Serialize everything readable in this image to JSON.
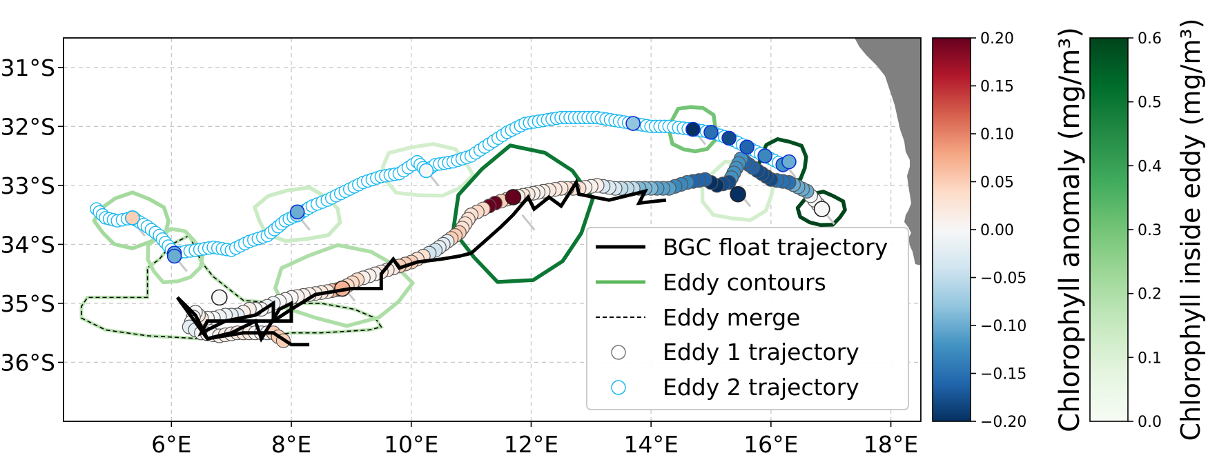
{
  "chart_data": [
    {
      "type": "scatter",
      "subtype": "map",
      "title": "",
      "xlabel": "",
      "ylabel": "",
      "xlim": [
        4.2,
        18.5
      ],
      "ylim": [
        -37.0,
        -30.5
      ],
      "x_ticks": [
        6,
        8,
        10,
        12,
        14,
        16,
        18
      ],
      "x_tick_labels": [
        "6°E",
        "8°E",
        "10°E",
        "12°E",
        "14°E",
        "16°E",
        "18°E"
      ],
      "y_ticks": [
        -31,
        -32,
        -33,
        -34,
        -35,
        -36
      ],
      "y_tick_labels": [
        "31°S",
        "32°S",
        "33°S",
        "34°S",
        "35°S",
        "36°S"
      ],
      "grid": true,
      "land_color": "#808080",
      "legend_position": "lower-right",
      "legend": [
        {
          "label": "BGC float trajectory",
          "style": "line",
          "color": "#000000"
        },
        {
          "label": "Eddy contours",
          "style": "line",
          "color": "#5cb85c"
        },
        {
          "label": "Eddy merge",
          "style": "dashed",
          "color": "#000000"
        },
        {
          "label": "Eddy 1 trajectory",
          "style": "circle",
          "color": "#777777"
        },
        {
          "label": "Eddy 2 trajectory",
          "style": "circle",
          "color": "#18b7f0"
        }
      ],
      "series": [
        {
          "name": "BGC float trajectory",
          "color": "#000000",
          "points": [
            [
              14.25,
              -33.25
            ],
            [
              13.8,
              -33.3
            ],
            [
              13.9,
              -33.1
            ],
            [
              13.3,
              -33.25
            ],
            [
              12.8,
              -33.15
            ],
            [
              12.75,
              -32.95
            ],
            [
              12.5,
              -33.35
            ],
            [
              12.3,
              -33.2
            ],
            [
              12.05,
              -33.4
            ],
            [
              11.95,
              -33.2
            ],
            [
              11.7,
              -33.5
            ],
            [
              11.5,
              -33.7
            ],
            [
              11.0,
              -34.15
            ],
            [
              10.8,
              -34.2
            ],
            [
              10.5,
              -34.25
            ],
            [
              10.1,
              -34.3
            ],
            [
              9.8,
              -34.4
            ],
            [
              9.7,
              -34.25
            ],
            [
              9.5,
              -34.5
            ],
            [
              9.5,
              -34.75
            ],
            [
              9.0,
              -34.75
            ],
            [
              8.4,
              -34.85
            ],
            [
              8.0,
              -35.1
            ],
            [
              7.7,
              -35.3
            ],
            [
              7.7,
              -35.0
            ],
            [
              7.4,
              -35.2
            ],
            [
              6.9,
              -35.3
            ],
            [
              6.5,
              -35.5
            ],
            [
              6.6,
              -35.3
            ],
            [
              7.2,
              -35.3
            ],
            [
              8.0,
              -35.3
            ],
            [
              8.0,
              -35.0
            ],
            [
              7.8,
              -35.1
            ],
            [
              7.5,
              -35.6
            ],
            [
              7.4,
              -35.3
            ],
            [
              7.0,
              -35.5
            ],
            [
              6.6,
              -35.6
            ],
            [
              6.4,
              -35.2
            ],
            [
              6.1,
              -34.9
            ],
            [
              6.6,
              -35.6
            ],
            [
              7.2,
              -35.5
            ],
            [
              7.7,
              -35.5
            ],
            [
              8.0,
              -35.7
            ],
            [
              8.3,
              -35.7
            ]
          ]
        },
        {
          "name": "Eddy 1 trajectory",
          "edge_color": "#555555",
          "points": [
            [
              16.85,
              -33.4
            ],
            [
              16.6,
              -33.1
            ],
            [
              16.3,
              -32.95
            ],
            [
              16.0,
              -32.9
            ],
            [
              15.7,
              -32.7
            ],
            [
              15.5,
              -32.55
            ],
            [
              15.3,
              -32.95
            ],
            [
              15.1,
              -33.0
            ],
            [
              14.9,
              -32.9
            ],
            [
              14.6,
              -32.95
            ],
            [
              14.3,
              -33.05
            ],
            [
              14.0,
              -33.05
            ],
            [
              13.7,
              -33.05
            ],
            [
              13.4,
              -33.05
            ],
            [
              13.1,
              -33.0
            ],
            [
              12.8,
              -33.05
            ],
            [
              12.5,
              -33.05
            ],
            [
              12.2,
              -33.1
            ],
            [
              11.95,
              -33.15
            ],
            [
              11.7,
              -33.2
            ],
            [
              11.4,
              -33.3
            ],
            [
              11.2,
              -33.4
            ],
            [
              11.0,
              -33.5
            ],
            [
              10.8,
              -33.8
            ],
            [
              10.6,
              -33.95
            ],
            [
              10.4,
              -34.1
            ],
            [
              10.2,
              -34.2
            ],
            [
              10.0,
              -34.3
            ],
            [
              9.7,
              -34.4
            ],
            [
              9.4,
              -34.5
            ],
            [
              9.1,
              -34.6
            ],
            [
              8.85,
              -34.75
            ],
            [
              8.6,
              -34.8
            ],
            [
              8.3,
              -34.85
            ],
            [
              8.0,
              -34.9
            ],
            [
              7.7,
              -35.0
            ],
            [
              7.5,
              -35.1
            ],
            [
              7.3,
              -35.1
            ],
            [
              7.1,
              -35.2
            ],
            [
              6.9,
              -35.2
            ],
            [
              6.7,
              -35.25
            ],
            [
              6.5,
              -35.25
            ],
            [
              6.4,
              -35.15
            ],
            [
              6.3,
              -35.4
            ],
            [
              6.5,
              -35.5
            ],
            [
              6.8,
              -35.55
            ],
            [
              7.1,
              -35.5
            ],
            [
              7.4,
              -35.5
            ],
            [
              7.7,
              -35.5
            ],
            [
              7.95,
              -35.7
            ],
            [
              6.8,
              -34.9
            ]
          ],
          "chl_anomaly": [
            0.0,
            -0.1,
            -0.15,
            -0.18,
            -0.16,
            -0.12,
            -0.18,
            -0.2,
            -0.16,
            -0.13,
            -0.11,
            -0.09,
            -0.05,
            -0.03,
            0.01,
            0.03,
            0.02,
            0.01,
            0.02,
            0.05,
            0.2,
            0.04,
            0.03,
            0.05,
            -0.02,
            -0.04,
            0.03,
            0.05,
            0.02,
            0.01,
            0.04,
            0.07,
            0.02,
            0.01,
            0.0,
            -0.01,
            0.0,
            0.01,
            -0.02,
            -0.01,
            0.0,
            0.02,
            0.0,
            -0.02,
            0.0,
            0.01,
            0.02,
            0.0,
            0.05,
            0.0,
            0.0
          ]
        },
        {
          "name": "Eddy 2 trajectory",
          "edge_color": "#18b7f0",
          "points": [
            [
              4.75,
              -33.4
            ],
            [
              4.9,
              -33.55
            ],
            [
              5.1,
              -33.6
            ],
            [
              5.35,
              -33.55
            ],
            [
              5.6,
              -33.7
            ],
            [
              5.8,
              -33.85
            ],
            [
              6.05,
              -34.15
            ],
            [
              6.4,
              -34.1
            ],
            [
              6.7,
              -34.05
            ],
            [
              7.0,
              -34.1
            ],
            [
              7.3,
              -33.95
            ],
            [
              7.6,
              -33.85
            ],
            [
              7.9,
              -33.6
            ],
            [
              8.1,
              -33.5
            ],
            [
              8.35,
              -33.35
            ],
            [
              8.6,
              -33.25
            ],
            [
              8.9,
              -33.1
            ],
            [
              9.2,
              -32.95
            ],
            [
              9.5,
              -32.85
            ],
            [
              9.8,
              -32.8
            ],
            [
              10.1,
              -32.6
            ],
            [
              10.25,
              -32.75
            ],
            [
              10.4,
              -32.65
            ],
            [
              10.7,
              -32.6
            ],
            [
              11.0,
              -32.5
            ],
            [
              11.3,
              -32.3
            ],
            [
              11.6,
              -32.1
            ],
            [
              11.9,
              -31.95
            ],
            [
              12.2,
              -31.9
            ],
            [
              12.5,
              -31.85
            ],
            [
              12.8,
              -31.85
            ],
            [
              13.1,
              -31.85
            ],
            [
              13.4,
              -31.9
            ],
            [
              13.7,
              -31.95
            ],
            [
              14.0,
              -32.0
            ],
            [
              14.3,
              -32.0
            ],
            [
              14.7,
              -32.05
            ],
            [
              15.0,
              -32.1
            ],
            [
              15.3,
              -32.2
            ],
            [
              15.6,
              -32.35
            ],
            [
              15.9,
              -32.5
            ],
            [
              16.2,
              -32.65
            ],
            [
              16.3,
              -32.6
            ],
            [
              10.25,
              -32.75
            ],
            [
              8.1,
              -33.45
            ],
            [
              6.05,
              -34.2
            ],
            [
              5.35,
              -33.55
            ],
            [
              10.0,
              -32.75
            ],
            [
              11.2,
              -32.6
            ]
          ],
          "chl_anomaly": [
            null,
            null,
            null,
            0.05,
            null,
            null,
            -0.1,
            null,
            null,
            null,
            null,
            null,
            null,
            -0.05,
            null,
            null,
            null,
            null,
            null,
            null,
            null,
            null,
            null,
            null,
            null,
            null,
            null,
            null,
            null,
            null,
            null,
            null,
            null,
            -0.08,
            null,
            null,
            -0.2,
            -0.15,
            -0.18,
            -0.16,
            -0.13,
            -0.12,
            -0.1,
            0.0,
            -0.1,
            -0.1,
            0.05,
            null,
            null
          ]
        },
        {
          "name": "Eddy contours",
          "contours": [
            {
              "center": [
                5.35,
                -33.6
              ],
              "rx": 0.6,
              "ry": 0.45,
              "chl": 0.22
            },
            {
              "center": [
                6.05,
                -34.2
              ],
              "rx": 0.45,
              "ry": 0.45,
              "chl": 0.2
            },
            {
              "center": [
                8.1,
                -33.5
              ],
              "rx": 0.7,
              "ry": 0.45,
              "chl": 0.14
            },
            {
              "center": [
                10.25,
                -32.75
              ],
              "rx": 0.75,
              "ry": 0.45,
              "chl": 0.12
            },
            {
              "center": [
                11.85,
                -33.5
              ],
              "rx": 1.15,
              "ry": 1.1,
              "chl": 0.5
            },
            {
              "center": [
                14.7,
                -32.05
              ],
              "rx": 0.4,
              "ry": 0.4,
              "chl": 0.3
            },
            {
              "center": [
                16.2,
                -32.6
              ],
              "rx": 0.4,
              "ry": 0.38,
              "chl": 0.58
            },
            {
              "center": [
                15.45,
                -33.1
              ],
              "rx": 0.6,
              "ry": 0.5,
              "chl": 0.12
            },
            {
              "center": [
                16.85,
                -33.4
              ],
              "rx": 0.38,
              "ry": 0.28,
              "chl": 0.6
            },
            {
              "center": [
                8.85,
                -34.7
              ],
              "rx": 1.1,
              "ry": 0.65,
              "chl": 0.2
            }
          ]
        },
        {
          "name": "Eddy merge",
          "points": [
            [
              6.3,
              -33.85
            ],
            [
              6.0,
              -34.0
            ],
            [
              5.8,
              -34.25
            ],
            [
              5.6,
              -34.4
            ],
            [
              5.6,
              -34.65
            ],
            [
              5.6,
              -34.9
            ],
            [
              5.2,
              -34.9
            ],
            [
              4.6,
              -34.9
            ],
            [
              4.5,
              -35.05
            ],
            [
              4.5,
              -35.25
            ],
            [
              4.9,
              -35.45
            ],
            [
              5.6,
              -35.55
            ],
            [
              6.5,
              -35.6
            ],
            [
              7.1,
              -35.55
            ],
            [
              7.6,
              -35.55
            ],
            [
              8.0,
              -35.5
            ],
            [
              8.5,
              -35.5
            ],
            [
              9.3,
              -35.45
            ],
            [
              9.5,
              -35.4
            ],
            [
              9.4,
              -35.25
            ],
            [
              9.05,
              -35.1
            ],
            [
              8.5,
              -35.0
            ],
            [
              7.8,
              -35.0
            ],
            [
              7.2,
              -34.95
            ],
            [
              6.7,
              -34.55
            ],
            [
              6.5,
              -34.3
            ],
            [
              6.3,
              -33.85
            ]
          ]
        }
      ]
    },
    {
      "type": "heatmap",
      "subtype": "colorbar",
      "colormap": "RdBu_r",
      "label": "Chlorophyll anomaly (mg/m³)",
      "range": [
        -0.2,
        0.2
      ],
      "ticks": [
        0.2,
        0.15,
        0.1,
        0.05,
        0.0,
        -0.05,
        -0.1,
        -0.15,
        -0.2
      ],
      "tick_labels": [
        "0.20",
        "0.15",
        "0.10",
        "0.05",
        "0.00",
        "−0.05",
        "−0.10",
        "−0.15",
        "−0.20"
      ],
      "colors": [
        "#053061",
        "#2166ac",
        "#4393c3",
        "#92c5de",
        "#d1e5f0",
        "#f7f7f7",
        "#fddbc7",
        "#f4a582",
        "#d6604d",
        "#b2182b",
        "#67001f"
      ]
    },
    {
      "type": "heatmap",
      "subtype": "colorbar",
      "colormap": "Greens",
      "label": "Chlorophyll inside eddy (mg/m³)",
      "range": [
        0.0,
        0.6
      ],
      "ticks": [
        0.6,
        0.5,
        0.4,
        0.3,
        0.2,
        0.1,
        0.0
      ],
      "tick_labels": [
        "0.6",
        "0.5",
        "0.4",
        "0.3",
        "0.2",
        "0.1",
        "0.0"
      ],
      "colors": [
        "#f7fcf5",
        "#e5f5e0",
        "#c7e9c0",
        "#a1d99b",
        "#74c476",
        "#41ab5d",
        "#238b45",
        "#006d2c",
        "#00441b"
      ]
    }
  ]
}
